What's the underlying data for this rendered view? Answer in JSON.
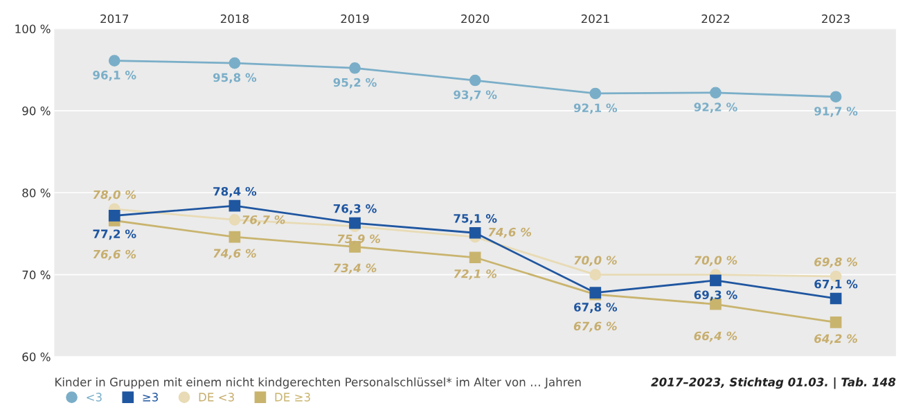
{
  "chart_data": {
    "type": "line",
    "categories": [
      "2017",
      "2018",
      "2019",
      "2020",
      "2021",
      "2022",
      "2023"
    ],
    "series": [
      {
        "name": "<3",
        "color": "#7aaec8",
        "marker": "circle",
        "values": [
          96.1,
          95.8,
          95.2,
          93.7,
          92.1,
          92.2,
          91.7
        ],
        "value_labels": [
          "96,1 %",
          "95,8 %",
          "95,2 %",
          "93,7 %",
          "92,1 %",
          "92,2 %",
          "91,7 %"
        ]
      },
      {
        "name": "≥3",
        "color": "#1f56a0",
        "marker": "square",
        "values": [
          77.2,
          78.4,
          76.3,
          75.1,
          67.8,
          69.3,
          67.1
        ],
        "value_labels": [
          "77,2 %",
          "78,4 %",
          "76,3 %",
          "75,1 %",
          "67,8 %",
          "69,3 %",
          "67,1 %"
        ]
      },
      {
        "name": "DE <3",
        "color": "#e8dbb5",
        "marker": "circle",
        "values": [
          78.0,
          76.7,
          75.9,
          74.6,
          70.0,
          70.0,
          69.8
        ],
        "value_labels": [
          "78,0 %",
          "76,7 %",
          "75,9 %",
          "74,6 %",
          "70,0 %",
          "70,0 %",
          "69,8 %"
        ]
      },
      {
        "name": "DE ≥3",
        "color": "#c9b46e",
        "marker": "square",
        "values": [
          76.6,
          74.6,
          73.4,
          72.1,
          67.6,
          66.4,
          64.2
        ],
        "value_labels": [
          "76,6 %",
          "74,6 %",
          "73,4 %",
          "72,1 %",
          "67,6 %",
          "66,4 %",
          "64,2 %"
        ]
      }
    ],
    "ylim": [
      60,
      100
    ],
    "yticks": [
      {
        "value": 60,
        "label": "60 %"
      },
      {
        "value": 70,
        "label": "70 %"
      },
      {
        "value": 80,
        "label": "80 %"
      },
      {
        "value": 90,
        "label": "90 %"
      },
      {
        "value": 100,
        "label": "100 %"
      }
    ],
    "grid": "y",
    "legend": "bottom left",
    "line_style": "solid",
    "annotations": [
      "Kinder in Gruppen mit einem nicht kindgerechten Personalschlüssel* im Alter von … Jahren",
      "2017–2023, Stichtag 01.03. | Tab. 148"
    ]
  }
}
